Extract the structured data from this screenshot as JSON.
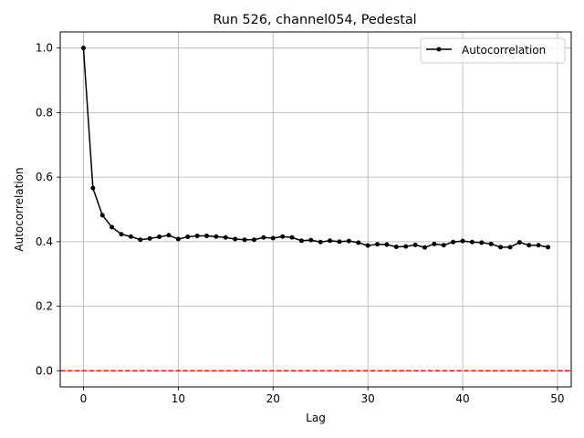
{
  "chart_data": {
    "type": "line",
    "title": "Run 526, channel054, Pedestal",
    "xlabel": "Lag",
    "ylabel": "Autocorrelation",
    "xlim": [
      -2.45,
      51.45
    ],
    "ylim": [
      -0.05,
      1.05
    ],
    "xticks": [
      0,
      10,
      20,
      30,
      40,
      50
    ],
    "yticks": [
      0.0,
      0.2,
      0.4,
      0.6,
      0.8,
      1.0
    ],
    "xtick_labels": [
      "0",
      "10",
      "20",
      "30",
      "40",
      "50"
    ],
    "ytick_labels": [
      "0.0",
      "0.2",
      "0.4",
      "0.6",
      "0.8",
      "1.0"
    ],
    "grid": true,
    "legend_position": "top-right",
    "series": [
      {
        "name": "Autocorrelation",
        "color": "#000000",
        "marker": "circle",
        "x": [
          0,
          1,
          2,
          3,
          4,
          5,
          6,
          7,
          8,
          9,
          10,
          11,
          12,
          13,
          14,
          15,
          16,
          17,
          18,
          19,
          20,
          21,
          22,
          23,
          24,
          25,
          26,
          27,
          28,
          29,
          30,
          31,
          32,
          33,
          34,
          35,
          36,
          37,
          38,
          39,
          40,
          41,
          42,
          43,
          44,
          45,
          46,
          47,
          48,
          49
        ],
        "y": [
          1.0,
          0.566,
          0.482,
          0.445,
          0.423,
          0.416,
          0.406,
          0.41,
          0.415,
          0.42,
          0.408,
          0.415,
          0.418,
          0.418,
          0.416,
          0.413,
          0.408,
          0.406,
          0.406,
          0.413,
          0.411,
          0.416,
          0.413,
          0.403,
          0.405,
          0.399,
          0.403,
          0.4,
          0.402,
          0.397,
          0.388,
          0.392,
          0.391,
          0.384,
          0.385,
          0.39,
          0.382,
          0.393,
          0.389,
          0.399,
          0.402,
          0.399,
          0.397,
          0.393,
          0.383,
          0.383,
          0.398,
          0.389,
          0.389,
          0.383
        ]
      }
    ],
    "reference_line": {
      "y": 0.0,
      "color": "#ff0000",
      "style": "dashed"
    }
  }
}
